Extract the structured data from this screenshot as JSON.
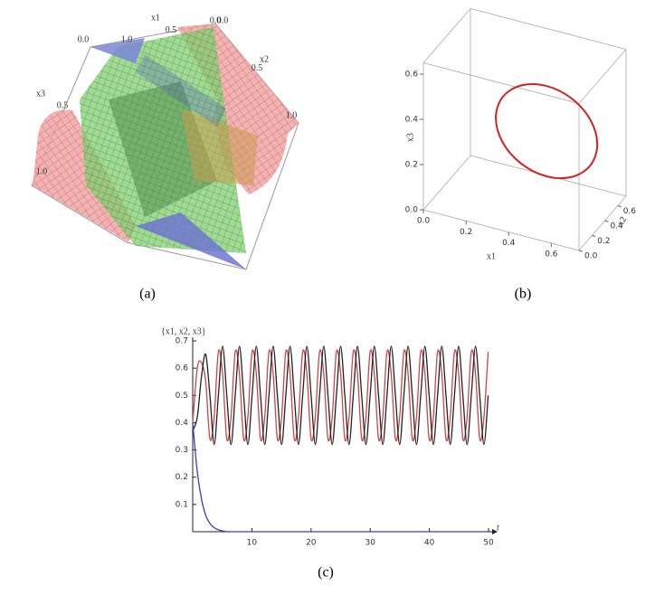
{
  "chart_data": [
    {
      "type": "surface3d",
      "caption": "(a)",
      "xlabel": "x1",
      "ylabel": "x2",
      "zlabel": "x3",
      "xlim": [
        0,
        1
      ],
      "xticks": [
        {
          "value": 0,
          "label": "0.0"
        },
        0.5,
        {
          "value": 1,
          "label": "1.0"
        }
      ],
      "ylim": [
        0,
        1
      ],
      "yticks": [
        {
          "value": 0,
          "label": "0.0"
        },
        0.5,
        {
          "value": 1,
          "label": "1.0"
        }
      ],
      "zlim": [
        0,
        1
      ],
      "zticks": [
        {
          "value": 0,
          "label": "0.0"
        },
        0.5,
        {
          "value": 1,
          "label": "1.0"
        }
      ]
    },
    {
      "type": "line3d",
      "caption": "(b)",
      "xlabel": "x1",
      "ylabel": "x2",
      "zlabel": "x3",
      "xlim": [
        0,
        0.73
      ],
      "xticks": [
        {
          "value": 0,
          "label": "0.0"
        },
        0.2,
        0.4,
        0.6
      ],
      "ylim": [
        0,
        0.73
      ],
      "yticks": [
        {
          "value": 0,
          "label": "0.0"
        },
        0.2,
        0.4,
        0.6
      ],
      "zlim": [
        0,
        0.65
      ],
      "zticks": [
        {
          "value": 0,
          "label": "0.0"
        },
        0.2,
        0.4,
        0.6
      ],
      "series": [
        {
          "color": "#d42222",
          "x": [
            0.71,
            0.678,
            0.591,
            0.472,
            0.353,
            0.266,
            0.234,
            0.266,
            0.353,
            0.472,
            0.591,
            0.678
          ],
          "y": [
            0.35,
            0.35,
            0.35,
            0.35,
            0.35,
            0.35,
            0.35,
            0.35,
            0.35,
            0.35,
            0.35,
            0.35
          ],
          "z": [
            0.349,
            0.449,
            0.522,
            0.549,
            0.522,
            0.449,
            0.349,
            0.249,
            0.176,
            0.149,
            0.176,
            0.249
          ]
        }
      ]
    },
    {
      "type": "line",
      "caption": "(c)",
      "ylabel": "{x1, x2, x3}",
      "xlabel": "t",
      "xlim": [
        0,
        50
      ],
      "xticks": [
        10,
        20,
        30,
        40,
        50
      ],
      "ylim": [
        0,
        0.7
      ],
      "yticks": [
        0.1,
        0.2,
        0.3,
        0.4,
        0.5,
        0.6,
        0.7
      ],
      "x": [
        0,
        0.775,
        1.4875,
        2.2,
        2.9125,
        3.625,
        4.3375,
        5.05,
        5.7625,
        6.475,
        7.1875,
        7.9,
        8.6125,
        9.325,
        10.0375,
        10.75,
        11.4625,
        12.175,
        12.8875,
        13.6,
        14.3125,
        15.025,
        15.7375,
        16.45,
        17.1625,
        17.875,
        18.5875,
        19.3,
        20.0125,
        20.725,
        21.4375,
        22.15,
        22.8625,
        23.575,
        24.2875,
        25.0,
        25.7125,
        26.425,
        27.1375,
        27.85,
        28.5625,
        29.275,
        29.9875,
        30.7,
        31.4125,
        32.125,
        32.8375,
        33.55,
        34.2625,
        34.975,
        35.6875,
        36.4,
        37.1125,
        37.825,
        38.5375,
        39.25,
        39.9625,
        40.675,
        41.3875,
        42.1,
        42.8125,
        43.525,
        44.2375,
        44.95,
        45.6625,
        46.375,
        47.0875,
        47.8,
        48.5125,
        49.225,
        49.9375
      ],
      "series": [
        {
          "color": "#d44444",
          "values": [
            0.4,
            0.6,
            0.62,
            0.55,
            0.34,
            0.42,
            0.66,
            0.58,
            0.34,
            0.42,
            0.66,
            0.58,
            0.34,
            0.42,
            0.66,
            0.58,
            0.34,
            0.42,
            0.66,
            0.58,
            0.34,
            0.42,
            0.66,
            0.58,
            0.34,
            0.42,
            0.66,
            0.58,
            0.34,
            0.42,
            0.66,
            0.58,
            0.34,
            0.42,
            0.66,
            0.58,
            0.34,
            0.42,
            0.66,
            0.58,
            0.34,
            0.42,
            0.66,
            0.58,
            0.34,
            0.42,
            0.66,
            0.58,
            0.34,
            0.42,
            0.66,
            0.58,
            0.34,
            0.42,
            0.66,
            0.58,
            0.34,
            0.42,
            0.66,
            0.58,
            0.34,
            0.42,
            0.66,
            0.58,
            0.34,
            0.42,
            0.66,
            0.58,
            0.34,
            0.42,
            0.66
          ]
        },
        {
          "color": "#222222",
          "values": [
            0.37,
            0.42,
            0.57,
            0.65,
            0.5,
            0.32,
            0.5,
            0.68,
            0.5,
            0.32,
            0.5,
            0.68,
            0.5,
            0.32,
            0.5,
            0.68,
            0.5,
            0.32,
            0.5,
            0.68,
            0.5,
            0.32,
            0.5,
            0.68,
            0.5,
            0.32,
            0.5,
            0.68,
            0.5,
            0.32,
            0.5,
            0.68,
            0.5,
            0.32,
            0.5,
            0.68,
            0.5,
            0.32,
            0.5,
            0.68,
            0.5,
            0.32,
            0.5,
            0.68,
            0.5,
            0.32,
            0.5,
            0.68,
            0.5,
            0.32,
            0.5,
            0.68,
            0.5,
            0.32,
            0.5,
            0.68,
            0.5,
            0.32,
            0.5,
            0.68,
            0.5,
            0.32,
            0.5,
            0.68,
            0.5,
            0.32,
            0.5,
            0.68,
            0.5,
            0.32,
            0.5
          ]
        },
        {
          "color": "#3a3ad0",
          "values": [
            0.4,
            0.22,
            0.12,
            0.06,
            0.03,
            0.015,
            0.007,
            0.003,
            0,
            0,
            0,
            0,
            0,
            0,
            0,
            0,
            0,
            0,
            0,
            0,
            0,
            0,
            0,
            0,
            0,
            0,
            0,
            0,
            0,
            0,
            0,
            0,
            0,
            0,
            0,
            0,
            0,
            0,
            0,
            0,
            0,
            0,
            0,
            0,
            0,
            0,
            0,
            0,
            0,
            0,
            0,
            0,
            0,
            0,
            0,
            0,
            0,
            0,
            0,
            0,
            0,
            0,
            0,
            0,
            0,
            0,
            0,
            0,
            0,
            0,
            0
          ]
        }
      ]
    }
  ]
}
